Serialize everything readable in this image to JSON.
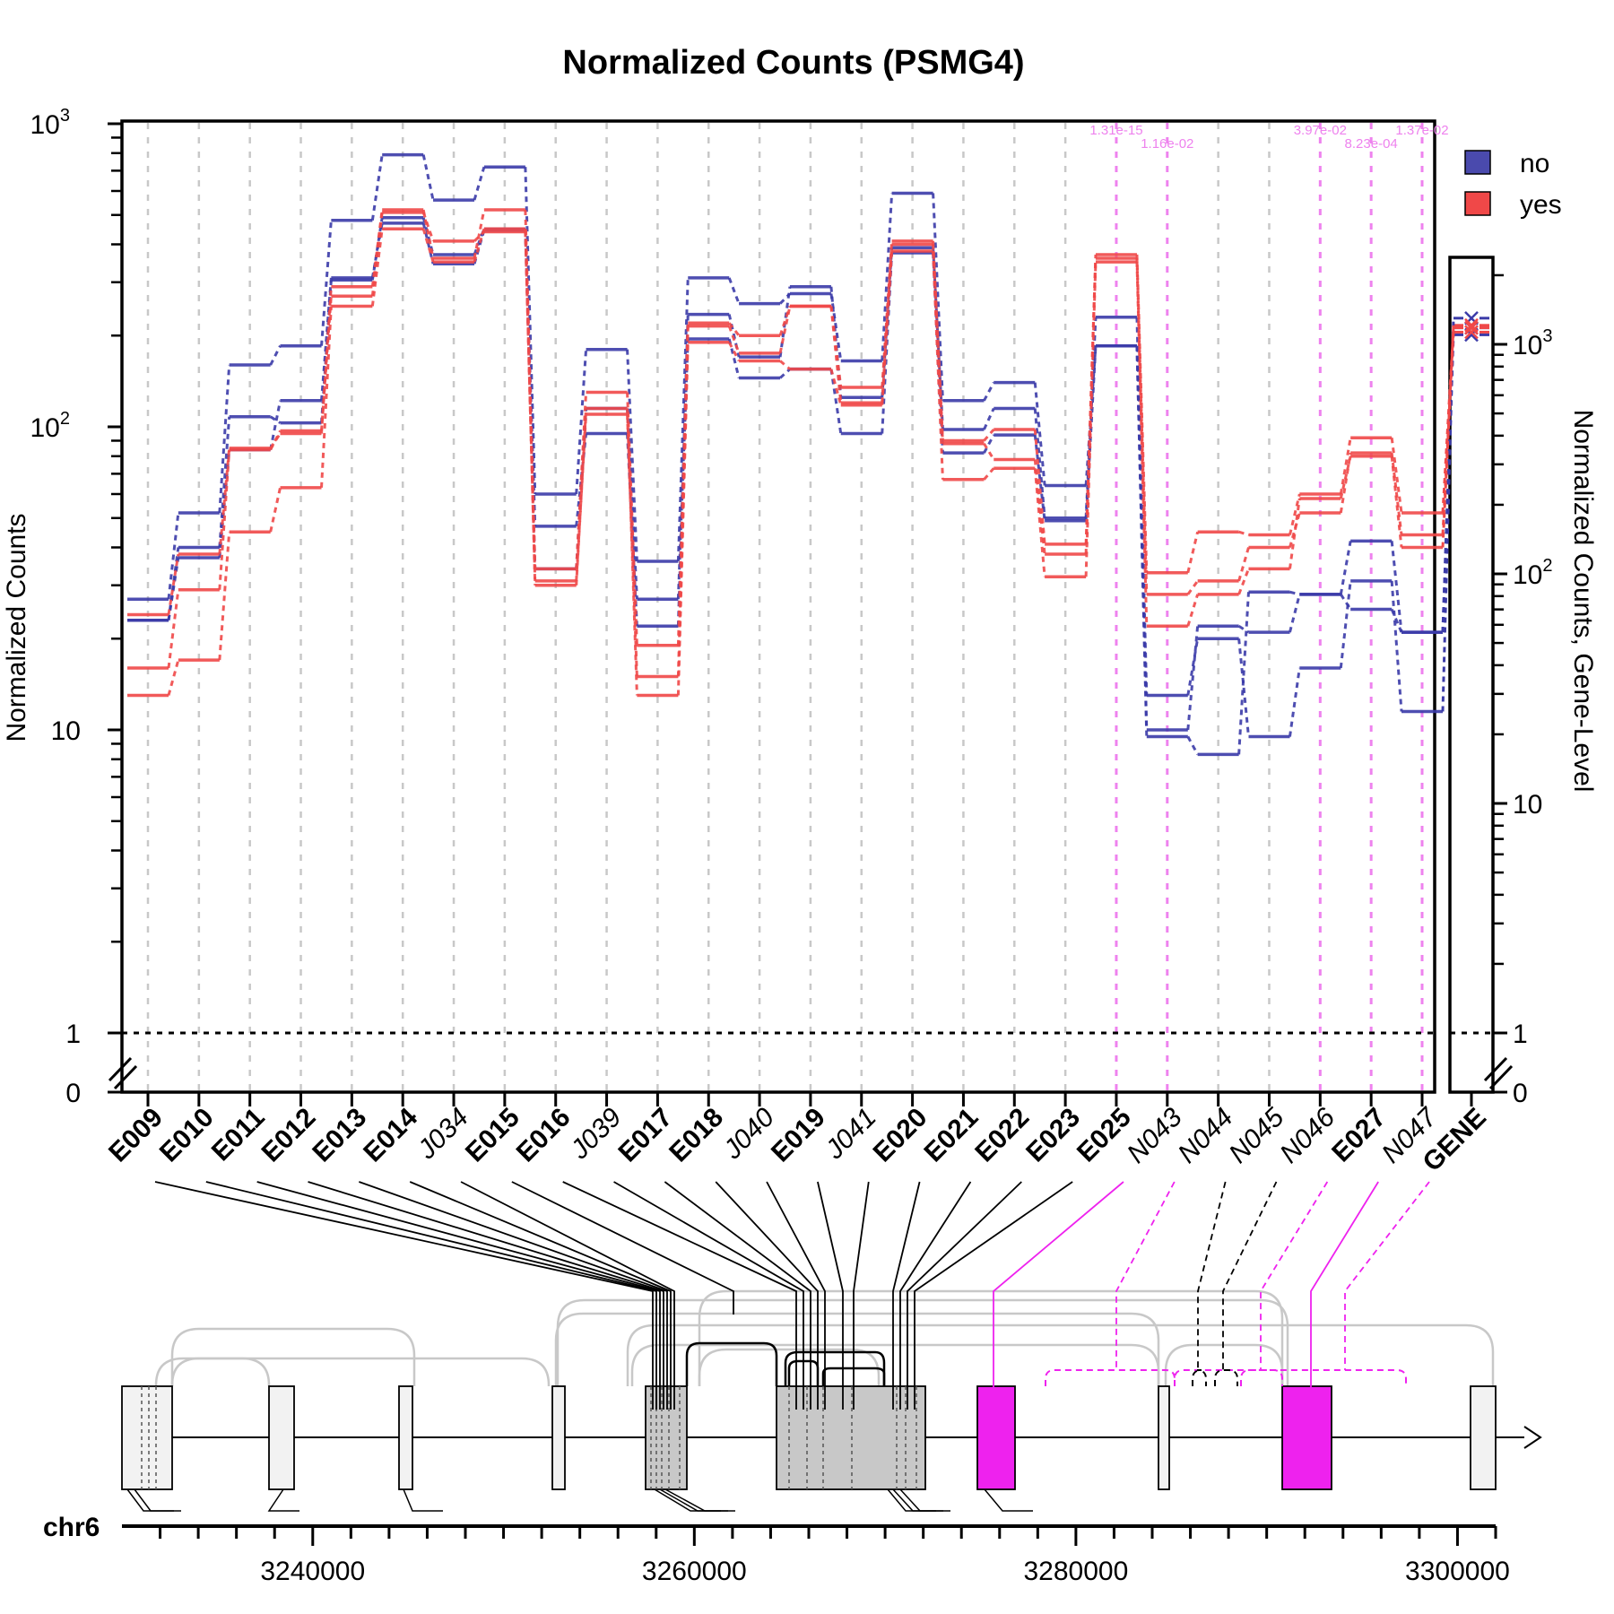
{
  "chart_data": {
    "type": "line",
    "title": "Normalized Counts (PSMG4)",
    "ylabel": "Normalized Counts",
    "ylabel_right": "Normalized Counts, Gene-Level",
    "yscale": "log",
    "ylim": [
      0,
      1000
    ],
    "yticks_left": [
      "0",
      "1",
      "10",
      "10^2",
      "10^3"
    ],
    "yticks_right": [
      "0",
      "1",
      "10",
      "10^2",
      "10^3"
    ],
    "colors": {
      "no": "#3b3ba8",
      "yes": "#f04848",
      "significant": "#ee82ee",
      "highlight_feature": "#ee22ee",
      "gene_box": "#f2f2f2",
      "gene_box_dark": "#c8c8c8"
    },
    "legend": {
      "position": "top-right",
      "entries": [
        {
          "label": "no",
          "color": "#4a4aad"
        },
        {
          "label": "yes",
          "color": "#f04848"
        }
      ]
    },
    "features": [
      {
        "id": "E009",
        "kind": "exon"
      },
      {
        "id": "E010",
        "kind": "exon"
      },
      {
        "id": "E011",
        "kind": "exon"
      },
      {
        "id": "E012",
        "kind": "exon"
      },
      {
        "id": "E013",
        "kind": "exon"
      },
      {
        "id": "E014",
        "kind": "exon"
      },
      {
        "id": "J034",
        "kind": "junction"
      },
      {
        "id": "E015",
        "kind": "exon"
      },
      {
        "id": "E016",
        "kind": "exon"
      },
      {
        "id": "J039",
        "kind": "junction"
      },
      {
        "id": "E017",
        "kind": "exon"
      },
      {
        "id": "E018",
        "kind": "exon"
      },
      {
        "id": "J040",
        "kind": "junction"
      },
      {
        "id": "E019",
        "kind": "exon"
      },
      {
        "id": "J041",
        "kind": "junction"
      },
      {
        "id": "E020",
        "kind": "exon"
      },
      {
        "id": "E021",
        "kind": "exon"
      },
      {
        "id": "E022",
        "kind": "exon"
      },
      {
        "id": "E023",
        "kind": "exon"
      },
      {
        "id": "E025",
        "kind": "exon"
      },
      {
        "id": "N043",
        "kind": "novel"
      },
      {
        "id": "N044",
        "kind": "novel"
      },
      {
        "id": "N045",
        "kind": "novel"
      },
      {
        "id": "N046",
        "kind": "novel"
      },
      {
        "id": "E027",
        "kind": "exon"
      },
      {
        "id": "N047",
        "kind": "novel"
      }
    ],
    "gene_label": "GENE",
    "significant": [
      {
        "feature": "E025",
        "pvalue": "1.31e-15"
      },
      {
        "feature": "N043",
        "pvalue": "1.16e-02"
      },
      {
        "feature": "N046",
        "pvalue": "3.97e-02"
      },
      {
        "feature": "E027",
        "pvalue": "8.23e-04"
      },
      {
        "feature": "N047",
        "pvalue": "1.37e-02"
      }
    ],
    "series": [
      {
        "group": "no",
        "values": [
          23,
          40,
          108,
          103,
          305,
          490,
          370,
          450,
          47,
          95,
          22,
          235,
          170,
          290,
          125,
          390,
          98,
          115,
          50,
          230,
          13,
          20,
          9.5,
          16,
          31,
          11.5
        ]
      },
      {
        "group": "no",
        "values": [
          27,
          52,
          160,
          185,
          480,
          790,
          560,
          720,
          60,
          180,
          36,
          310,
          255,
          275,
          165,
          590,
          122,
          140,
          64,
          185,
          10,
          22,
          21,
          28,
          25,
          21
        ]
      },
      {
        "group": "no",
        "values": [
          23,
          37,
          84,
          122,
          310,
          470,
          345,
          445,
          34,
          115,
          27,
          195,
          145,
          155,
          95,
          375,
          82,
          94,
          49,
          185,
          9.5,
          8.3,
          28.5,
          28,
          42,
          21
        ]
      },
      {
        "group": "yes",
        "values": [
          24,
          38,
          85,
          95,
          290,
          520,
          360,
          520,
          34,
          130,
          19,
          220,
          200,
          250,
          135,
          410,
          90,
          98,
          41,
          370,
          33,
          45,
          44,
          60,
          92,
          52
        ]
      },
      {
        "group": "yes",
        "values": [
          16,
          29,
          84,
          97,
          270,
          510,
          410,
          440,
          31,
          110,
          15,
          215,
          175,
          250,
          120,
          400,
          88,
          78,
          38,
          360,
          28,
          31,
          40,
          52,
          82,
          44
        ]
      },
      {
        "group": "yes",
        "values": [
          13,
          17,
          45,
          63,
          250,
          450,
          350,
          450,
          30,
          115,
          13,
          190,
          165,
          155,
          118,
          380,
          67,
          73,
          32,
          350,
          22,
          28,
          34,
          58,
          80,
          40
        ]
      }
    ],
    "gene_level": {
      "no": [
        1300,
        1180,
        1100
      ],
      "yes": [
        1180,
        1130,
        1210
      ]
    },
    "chromosome": "chr6",
    "genomic_ticks": [
      "3240000",
      "3260000",
      "3280000",
      "3300000"
    ],
    "genomic_range": [
      3230000,
      3302000
    ]
  }
}
